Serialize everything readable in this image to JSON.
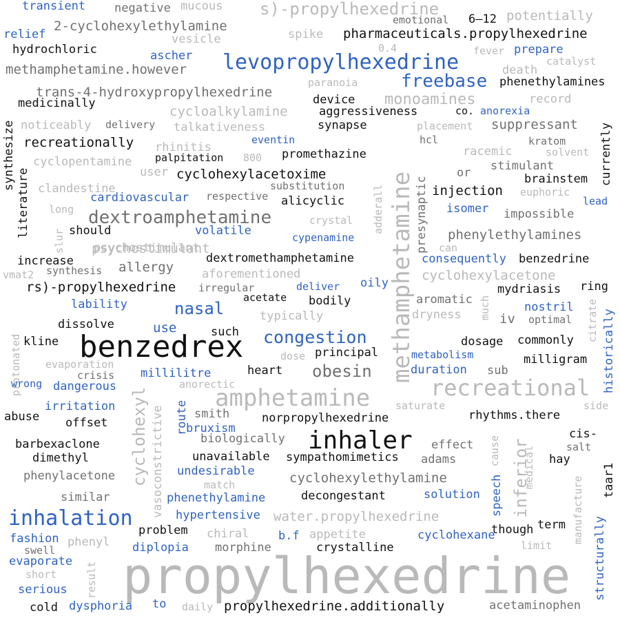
{
  "palette": {
    "black": "#111111",
    "gray": "#707070",
    "light": "#b9b9b9",
    "blue": "#2f62c2"
  },
  "words": [
    {
      "text": "propylhexedrine",
      "color": "light"
    },
    {
      "text": "benzedrex",
      "color": "black"
    },
    {
      "text": "inhaler",
      "color": "black"
    },
    {
      "text": "methamphetamine",
      "color": "light"
    },
    {
      "text": "amphetamine",
      "color": "light"
    },
    {
      "text": "recreational",
      "color": "light"
    },
    {
      "text": "levopropylhexedrine",
      "color": "blue"
    },
    {
      "text": "inhalation",
      "color": "blue"
    },
    {
      "text": "dextroamphetamine",
      "color": "gray"
    },
    {
      "text": "freebase",
      "color": "blue"
    },
    {
      "text": "congestion",
      "color": "blue"
    },
    {
      "text": "obesin",
      "color": "gray"
    },
    {
      "text": "nasal",
      "color": "blue"
    },
    {
      "text": "s)-propylhexedrine",
      "color": "light"
    },
    {
      "text": "inferior",
      "color": "light"
    },
    {
      "text": "cyclohexyl",
      "color": "light"
    },
    {
      "text": "monoamines",
      "color": "light"
    },
    {
      "text": "pharmaceuticals.propylhexedrine",
      "color": "black"
    },
    {
      "text": "methamphetamine.however",
      "color": "gray"
    },
    {
      "text": "trans-4-hydroxypropylhexedrine",
      "color": "gray"
    },
    {
      "text": "2-cyclohexylethylamine",
      "color": "gray"
    },
    {
      "text": "cyclohexylethylamine",
      "color": "gray"
    },
    {
      "text": "propylhexedrine.additionally",
      "color": "black"
    },
    {
      "text": "cyclohexylacetoxime",
      "color": "black"
    },
    {
      "text": "dextromethamphetamine",
      "color": "black"
    },
    {
      "text": "norpropylhexedrine",
      "color": "black"
    },
    {
      "text": "water.propylhexedrine",
      "color": "light"
    },
    {
      "text": "rs)-propylhexedrine",
      "color": "black"
    },
    {
      "text": "phenylethylamines",
      "color": "gray"
    },
    {
      "text": "sympathomimetics",
      "color": "black"
    },
    {
      "text": "cyclohexylacetone",
      "color": "light"
    },
    {
      "text": "phenethylamines",
      "color": "black"
    },
    {
      "text": "psychostimulant",
      "color": "light"
    },
    {
      "text": "recreationally",
      "color": "black"
    },
    {
      "text": "cycloalkylamine",
      "color": "light"
    },
    {
      "text": "cyclopentamine",
      "color": "light"
    },
    {
      "text": "cardiovascular",
      "color": "blue"
    },
    {
      "text": "aggressiveness",
      "color": "black"
    },
    {
      "text": "acetaminophen",
      "color": "gray"
    },
    {
      "text": "aforementioned",
      "color": "light"
    },
    {
      "text": "phenylacetone",
      "color": "gray"
    },
    {
      "text": "phenethylamine",
      "color": "blue"
    },
    {
      "text": "vasoconstrictive",
      "color": "light"
    },
    {
      "text": "decongestant",
      "color": "black"
    },
    {
      "text": "barbexaclone",
      "color": "black"
    },
    {
      "text": "hydrochloric",
      "color": "black"
    },
    {
      "text": "talkativeness",
      "color": "light"
    },
    {
      "text": "biologically",
      "color": "gray"
    },
    {
      "text": "psychostimulant",
      "color": "light"
    },
    {
      "text": "structurally",
      "color": "blue"
    },
    {
      "text": "historically",
      "color": "blue"
    },
    {
      "text": "consequently",
      "color": "blue"
    },
    {
      "text": "medicinally",
      "color": "black"
    },
    {
      "text": "noticeably",
      "color": "light"
    },
    {
      "text": "suppressant",
      "color": "gray"
    },
    {
      "text": "hypertensive",
      "color": "blue"
    },
    {
      "text": "unavailable",
      "color": "black"
    },
    {
      "text": "undesirable",
      "color": "blue"
    },
    {
      "text": "transient",
      "color": "blue"
    },
    {
      "text": "negative",
      "color": "gray"
    },
    {
      "text": "mucous",
      "color": "light"
    },
    {
      "text": "emotional",
      "color": "gray"
    },
    {
      "text": "6–12",
      "color": "black"
    },
    {
      "text": "potentially",
      "color": "light"
    },
    {
      "text": "relief",
      "color": "blue"
    },
    {
      "text": "vesicle",
      "color": "light"
    },
    {
      "text": "spike",
      "color": "light"
    },
    {
      "text": "ascher",
      "color": "blue"
    },
    {
      "text": "0.4",
      "color": "light"
    },
    {
      "text": "fever",
      "color": "light"
    },
    {
      "text": "prepare",
      "color": "blue"
    },
    {
      "text": "catalyst",
      "color": "light"
    },
    {
      "text": "death",
      "color": "light"
    },
    {
      "text": "paranoia",
      "color": "light"
    },
    {
      "text": "record",
      "color": "light"
    },
    {
      "text": "device",
      "color": "black"
    },
    {
      "text": "co.",
      "color": "black"
    },
    {
      "text": "anorexia",
      "color": "blue"
    },
    {
      "text": "synapse",
      "color": "black"
    },
    {
      "text": "placement",
      "color": "light"
    },
    {
      "text": "delivery",
      "color": "gray"
    },
    {
      "text": "currently",
      "color": "black"
    },
    {
      "text": "synthesize",
      "color": "black"
    },
    {
      "text": "eventin",
      "color": "blue"
    },
    {
      "text": "hcl",
      "color": "gray"
    },
    {
      "text": "racemic",
      "color": "light"
    },
    {
      "text": "kratom",
      "color": "gray"
    },
    {
      "text": "solvent",
      "color": "light"
    },
    {
      "text": "rhinitis",
      "color": "light"
    },
    {
      "text": "promethazine",
      "color": "black"
    },
    {
      "text": "palpitation",
      "color": "black"
    },
    {
      "text": "800",
      "color": "light"
    },
    {
      "text": "stimulant",
      "color": "gray"
    },
    {
      "text": "literature",
      "color": "black"
    },
    {
      "text": "user",
      "color": "light"
    },
    {
      "text": "or",
      "color": "gray"
    },
    {
      "text": "brainstem",
      "color": "black"
    },
    {
      "text": "clandestine",
      "color": "light"
    },
    {
      "text": "substitution",
      "color": "gray"
    },
    {
      "text": "adderall",
      "color": "light"
    },
    {
      "text": "presynaptic",
      "color": "gray"
    },
    {
      "text": "injection",
      "color": "black"
    },
    {
      "text": "euphoric",
      "color": "light"
    },
    {
      "text": "respective",
      "color": "gray"
    },
    {
      "text": "alicyclic",
      "color": "black"
    },
    {
      "text": "lead",
      "color": "blue"
    },
    {
      "text": "long",
      "color": "light"
    },
    {
      "text": "isomer",
      "color": "blue"
    },
    {
      "text": "crystal",
      "color": "light"
    },
    {
      "text": "impossible",
      "color": "gray"
    },
    {
      "text": "should",
      "color": "black"
    },
    {
      "text": "volatile",
      "color": "blue"
    },
    {
      "text": "slur",
      "color": "light"
    },
    {
      "text": "cypenamine",
      "color": "blue"
    },
    {
      "text": "can",
      "color": "light"
    },
    {
      "text": "increase",
      "color": "black"
    },
    {
      "text": "synthesis",
      "color": "gray"
    },
    {
      "text": "allergy",
      "color": "gray"
    },
    {
      "text": "benzedrine",
      "color": "black"
    },
    {
      "text": "vmat2",
      "color": "light"
    },
    {
      "text": "oily",
      "color": "blue"
    },
    {
      "text": "irregular",
      "color": "gray"
    },
    {
      "text": "deliver",
      "color": "blue"
    },
    {
      "text": "mydriasis",
      "color": "black"
    },
    {
      "text": "ring",
      "color": "black"
    },
    {
      "text": "acetate",
      "color": "black"
    },
    {
      "text": "bodily",
      "color": "black"
    },
    {
      "text": "aromatic",
      "color": "gray"
    },
    {
      "text": "much",
      "color": "light"
    },
    {
      "text": "nostril",
      "color": "blue"
    },
    {
      "text": "lability",
      "color": "blue"
    },
    {
      "text": "protonated",
      "color": "light"
    },
    {
      "text": "typically",
      "color": "light"
    },
    {
      "text": "dryness",
      "color": "light"
    },
    {
      "text": "iv",
      "color": "gray"
    },
    {
      "text": "optimal",
      "color": "gray"
    },
    {
      "text": "citrate",
      "color": "light"
    },
    {
      "text": "dissolve",
      "color": "black"
    },
    {
      "text": "use",
      "color": "blue"
    },
    {
      "text": "such",
      "color": "black"
    },
    {
      "text": "kline",
      "color": "black"
    },
    {
      "text": "dosage",
      "color": "black"
    },
    {
      "text": "commonly",
      "color": "black"
    },
    {
      "text": "evaporation",
      "color": "light"
    },
    {
      "text": "dose",
      "color": "light"
    },
    {
      "text": "principal",
      "color": "black"
    },
    {
      "text": "metabolism",
      "color": "blue"
    },
    {
      "text": "milligram",
      "color": "black"
    },
    {
      "text": "crisis",
      "color": "gray"
    },
    {
      "text": "millilitre",
      "color": "blue"
    },
    {
      "text": "heart",
      "color": "black"
    },
    {
      "text": "duration",
      "color": "blue"
    },
    {
      "text": "sub",
      "color": "gray"
    },
    {
      "text": "wrong",
      "color": "blue"
    },
    {
      "text": "dangerous",
      "color": "blue"
    },
    {
      "text": "anorectic",
      "color": "light"
    },
    {
      "text": "irritation",
      "color": "blue"
    },
    {
      "text": "saturate",
      "color": "light"
    },
    {
      "text": "side",
      "color": "light"
    },
    {
      "text": "abuse",
      "color": "black"
    },
    {
      "text": "route",
      "color": "blue"
    },
    {
      "text": "smith",
      "color": "gray"
    },
    {
      "text": "rhythms.there",
      "color": "black"
    },
    {
      "text": "offset",
      "color": "black"
    },
    {
      "text": "bruxism",
      "color": "blue"
    },
    {
      "text": "cis-",
      "color": "black"
    },
    {
      "text": "effect",
      "color": "gray"
    },
    {
      "text": "cause",
      "color": "light"
    },
    {
      "text": "salt",
      "color": "gray"
    },
    {
      "text": "dimethyl",
      "color": "black"
    },
    {
      "text": "hay",
      "color": "black"
    },
    {
      "text": "adams",
      "color": "gray"
    },
    {
      "text": "medical",
      "color": "light"
    },
    {
      "text": "taar1",
      "color": "black"
    },
    {
      "text": "similar",
      "color": "gray"
    },
    {
      "text": "match",
      "color": "light"
    },
    {
      "text": "speech",
      "color": "blue"
    },
    {
      "text": "manufacture",
      "color": "light"
    },
    {
      "text": "solution",
      "color": "blue"
    },
    {
      "text": "term",
      "color": "black"
    },
    {
      "text": "though",
      "color": "black"
    },
    {
      "text": "fashion",
      "color": "blue"
    },
    {
      "text": "problem",
      "color": "black"
    },
    {
      "text": "chiral",
      "color": "light"
    },
    {
      "text": "b.f",
      "color": "blue"
    },
    {
      "text": "appetite",
      "color": "light"
    },
    {
      "text": "cyclohexane",
      "color": "blue"
    },
    {
      "text": "phenyl",
      "color": "light"
    },
    {
      "text": "swell",
      "color": "gray"
    },
    {
      "text": "diplopia",
      "color": "blue"
    },
    {
      "text": "morphine",
      "color": "gray"
    },
    {
      "text": "crystalline",
      "color": "black"
    },
    {
      "text": "limit",
      "color": "light"
    },
    {
      "text": "evaporate",
      "color": "blue"
    },
    {
      "text": "short",
      "color": "light"
    },
    {
      "text": "result",
      "color": "light"
    },
    {
      "text": "serious",
      "color": "blue"
    },
    {
      "text": "cold",
      "color": "black"
    },
    {
      "text": "dysphoria",
      "color": "blue"
    },
    {
      "text": "to",
      "color": "blue"
    },
    {
      "text": "daily",
      "color": "light"
    }
  ]
}
